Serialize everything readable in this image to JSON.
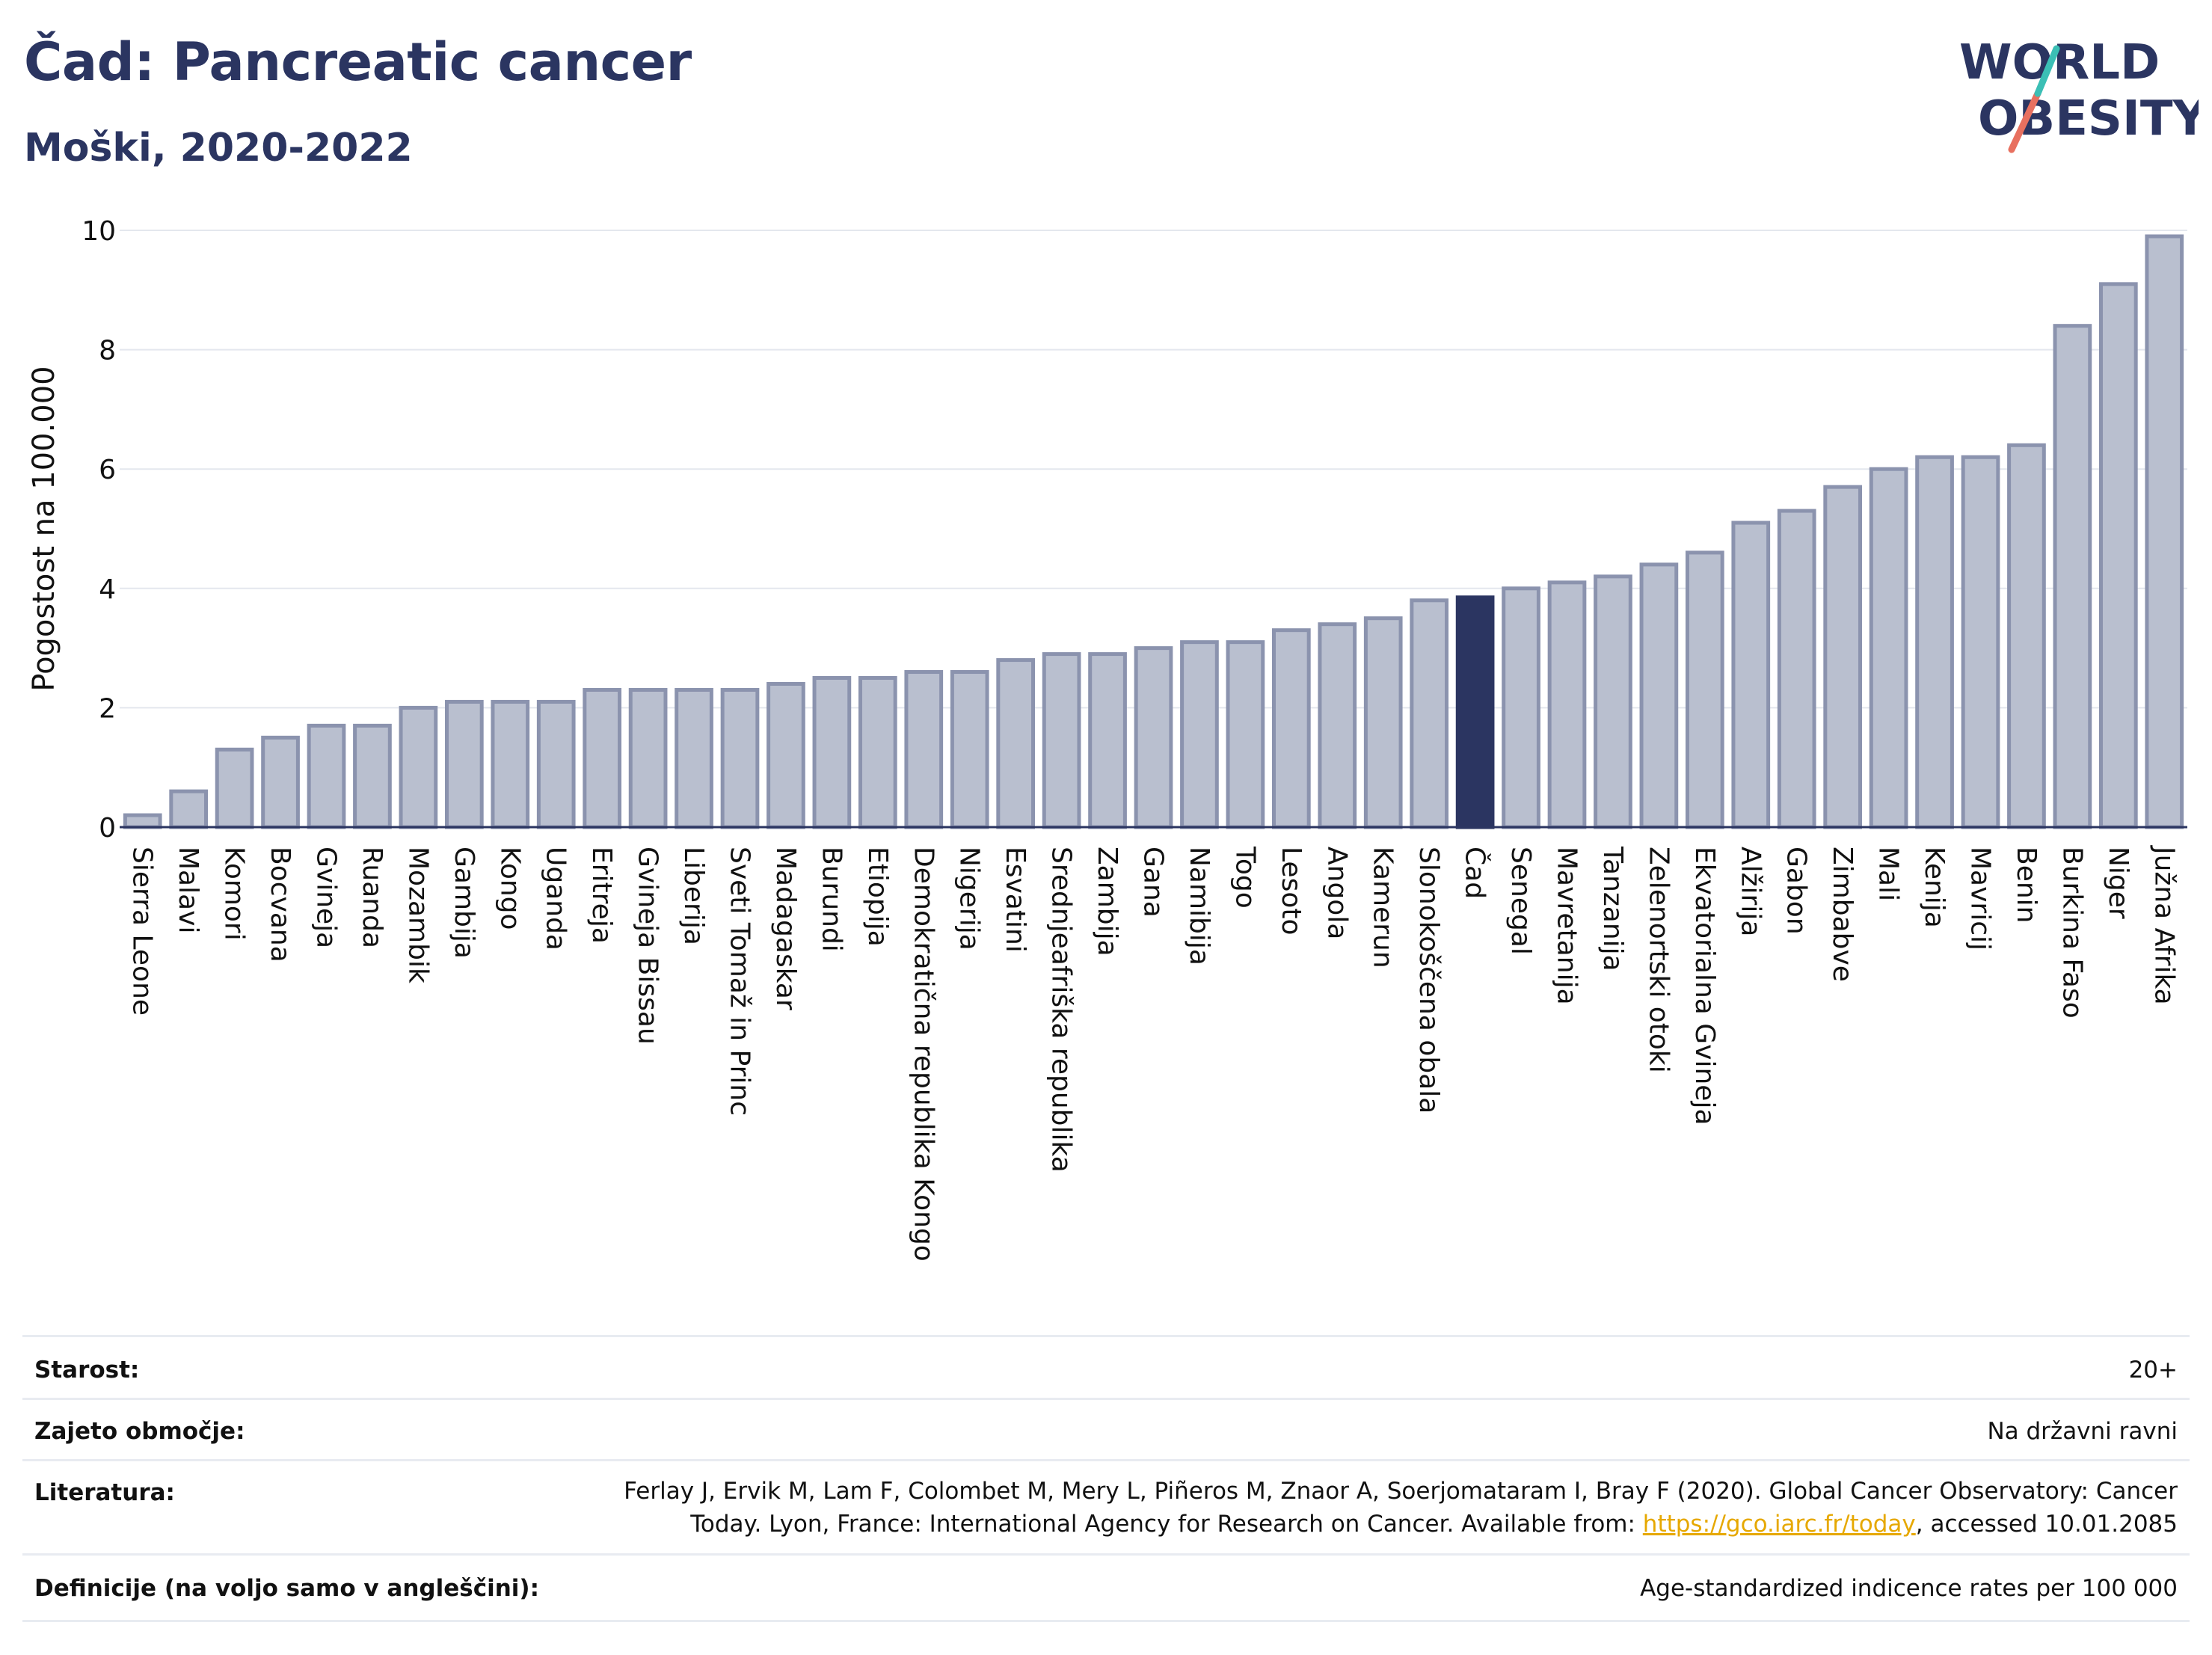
{
  "title": "Čad: Pancreatic cancer",
  "subtitle": "Moški, 2020-2022",
  "logo": {
    "line1": "WORLD",
    "line2": "OBESITY"
  },
  "colors": {
    "bar": "#b9bfcf",
    "bar_stroke": "#8b93ae",
    "highlight": "#2b3561",
    "grid": "#e4e7ee",
    "title": "#2b3561"
  },
  "chart_data": {
    "type": "bar",
    "ylabel": "Pogostost na 100.000",
    "xlabel": "",
    "ylim": [
      0,
      10
    ],
    "yticks": [
      0,
      2,
      4,
      6,
      8,
      10
    ],
    "highlight": "Čad",
    "categories": [
      "Sierra Leone",
      "Malavi",
      "Komori",
      "Bocvana",
      "Gvineja",
      "Ruanda",
      "Mozambik",
      "Gambija",
      "Kongo",
      "Uganda",
      "Eritreja",
      "Gvineja Bissau",
      "Liberija",
      "Sveti Tomaž in Princ",
      "Madagaskar",
      "Burundi",
      "Etiopija",
      "Demokratična republika Kongo",
      "Nigerija",
      "Esvatini",
      "Srednjeafriška republika",
      "Zambija",
      "Gana",
      "Namibija",
      "Togo",
      "Lesoto",
      "Angola",
      "Kamerun",
      "Slonokoščena obala",
      "Čad",
      "Senegal",
      "Mavretanija",
      "Tanzanija",
      "Zelenortski otoki",
      "Ekvatorialna Gvineja",
      "Alžirija",
      "Gabon",
      "Zimbabve",
      "Mali",
      "Kenija",
      "Mavricij",
      "Benin",
      "Burkina Faso",
      "Niger",
      "Južna Afrika"
    ],
    "values": [
      0.2,
      0.6,
      1.3,
      1.5,
      1.7,
      1.7,
      2.0,
      2.1,
      2.1,
      2.1,
      2.3,
      2.3,
      2.3,
      2.3,
      2.4,
      2.5,
      2.5,
      2.6,
      2.6,
      2.8,
      2.9,
      2.9,
      3.0,
      3.1,
      3.1,
      3.3,
      3.4,
      3.5,
      3.8,
      3.85,
      4.0,
      4.1,
      4.2,
      4.4,
      4.6,
      5.1,
      5.3,
      5.7,
      6.0,
      6.2,
      6.2,
      6.4,
      8.4,
      9.1,
      9.9
    ]
  },
  "meta": [
    {
      "label": "Starost:",
      "value": "20+"
    },
    {
      "label": "Zajeto območje:",
      "value": "Na državni ravni"
    },
    {
      "label": "Literatura:",
      "value_line1": "Ferlay J, Ervik M, Lam F, Colombet M, Mery L, Piñeros M, Znaor A, Soerjomataram I, Bray F (2020). Global Cancer Observatory: Cancer",
      "value_line2_pre": "Today. Lyon, France: International Agency for Research on Cancer. Available from: ",
      "value_link": "https://gco.iarc.fr/today",
      "value_line2_post": ", accessed 10.01.2085"
    },
    {
      "label": "Definicije (na voljo samo v angleščini):",
      "value": "Age-standardized indicence rates per 100 000"
    }
  ]
}
